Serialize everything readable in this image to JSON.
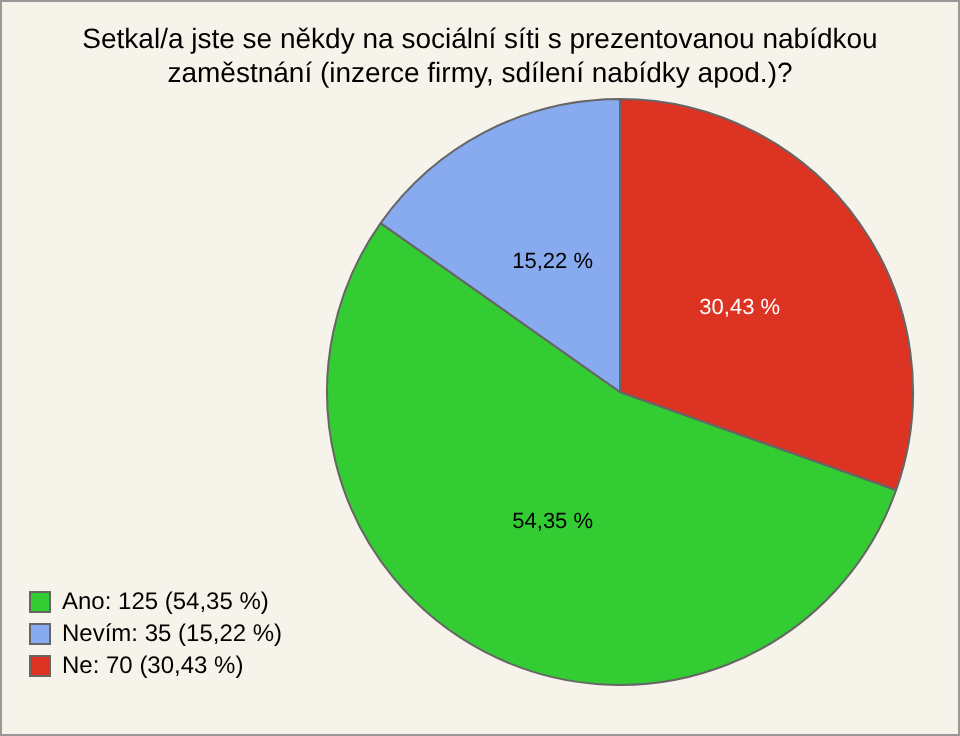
{
  "chart_data": {
    "type": "pie",
    "title": "Setkal/a jste se někdy na sociální síti s prezentovanou nabídkou zaměstnání (inzerce firmy, sdílení nabídky apod.)?",
    "categories": [
      "Ano: 125 (54,35 %)",
      "Nevím: 35 (15,22 %)",
      "Ne: 70 (30,43 %)"
    ],
    "values": [
      54.35,
      15.22,
      30.43
    ],
    "value_labels": [
      "54,35 %",
      "15,22 %",
      "30,43 %"
    ],
    "colors": [
      "#33cc33",
      "#88aaee",
      "#dd3322"
    ],
    "legend": "bottom left"
  }
}
